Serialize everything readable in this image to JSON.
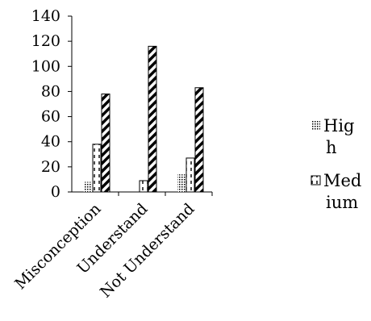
{
  "chart_data": {
    "type": "bar",
    "title": "",
    "xlabel": "",
    "ylabel": "",
    "categories": [
      "Misconception",
      "Understand",
      "Not Understand"
    ],
    "series": [
      {
        "name": "High",
        "legend_lines": [
          "Hig",
          "h"
        ],
        "pattern": "dots",
        "values": [
          8,
          0,
          14
        ]
      },
      {
        "name": "Medium",
        "legend_lines": [
          "Med",
          "ium"
        ],
        "pattern": "dashes",
        "values": [
          38,
          9,
          27
        ]
      },
      {
        "name": "",
        "pattern": "diagonal-stripes",
        "values": [
          78,
          116,
          83
        ]
      }
    ],
    "yticks": [
      0,
      20,
      40,
      60,
      80,
      100,
      120,
      140
    ],
    "ylim": [
      0,
      140
    ],
    "grid": false,
    "legend_position": "right"
  }
}
